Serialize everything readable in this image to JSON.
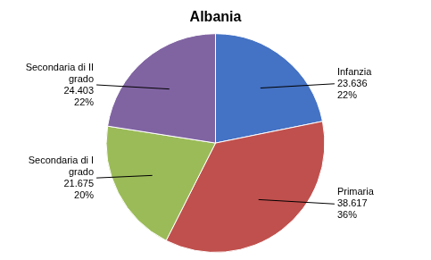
{
  "chart_data": {
    "type": "pie",
    "title": "Albania",
    "categories": [
      "Infanzia",
      "Primaria",
      "Secondaria di I\ngrado",
      "Secondaria di II\ngrado"
    ],
    "values": [
      23636,
      38617,
      21675,
      24403
    ],
    "value_labels": [
      "23.636",
      "38.617",
      "21.675",
      "24.403"
    ],
    "shares": [
      22,
      36,
      20,
      22
    ],
    "share_labels": [
      "22%",
      "36%",
      "20%",
      "22%"
    ],
    "colors": [
      "#4472C4",
      "#C0504D",
      "#9BBB59",
      "#8064A2"
    ],
    "data_labels": true
  }
}
